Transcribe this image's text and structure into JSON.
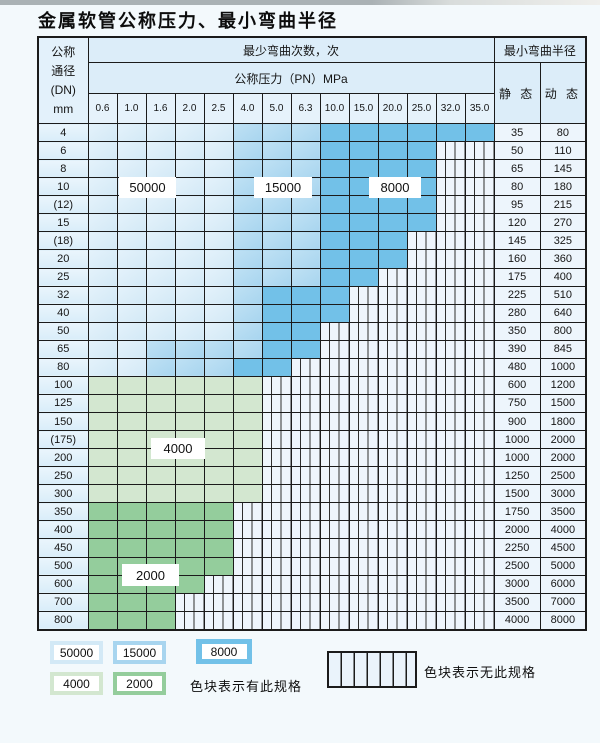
{
  "title": "金属软管公称压力、最小弯曲半径",
  "colors": {
    "blue_light": "#d3e9f6",
    "blue_light_hi": "#e4f2fb",
    "blue_medium": "#a8d5ef",
    "blue_medium_hi": "#bfe1f4",
    "blue_dark": "#72c1e8",
    "green_light": "#d3e7d0",
    "green_medium": "#94cd9c"
  },
  "table": {
    "header": {
      "dn_label_lines": [
        "公称",
        "通径",
        "(DN)",
        "mm"
      ],
      "bend_times_label": "最少弯曲次数，次",
      "pressure_label": "公称压力（PN）MPa",
      "radius_label": "最小弯曲半径",
      "static_label": "静 态",
      "dynamic_label": "动 态",
      "pressure_columns": [
        "0.6",
        "1.0",
        "1.6",
        "2.0",
        "2.5",
        "4.0",
        "5.0",
        "6.3",
        "10.0",
        "15.0",
        "20.0",
        "25.0",
        "32.0",
        "35.0"
      ]
    },
    "cell_codes": {
      "L": "50000次 区域(浅蓝)",
      "M": "15000次 区域(中蓝)",
      "D": "8000次 区域(深蓝)",
      "G": "4000次 区域(浅绿)",
      "E": "2000次 区域(中绿)",
      "X": "无此规格(竖纹)"
    },
    "rows": [
      {
        "dn": "4",
        "cells": "LLLLLMMMDDDDDD",
        "static": "35",
        "dynamic": "80"
      },
      {
        "dn": "6",
        "cells": "LLLLLMMMDDDDXX",
        "static": "50",
        "dynamic": "110"
      },
      {
        "dn": "8",
        "cells": "LLLLLMMMDDDDXX",
        "static": "65",
        "dynamic": "145"
      },
      {
        "dn": "10",
        "cells": "LLLLLMMMDDDDXX",
        "static": "80",
        "dynamic": "180"
      },
      {
        "dn": "(12)",
        "cells": "LLLLLMMMDDDDXX",
        "static": "95",
        "dynamic": "215"
      },
      {
        "dn": "15",
        "cells": "LLLLLMMMDDDDXX",
        "static": "120",
        "dynamic": "270"
      },
      {
        "dn": "(18)",
        "cells": "LLLLLMMMDDDXXX",
        "static": "145",
        "dynamic": "325"
      },
      {
        "dn": "20",
        "cells": "LLLLLMMMDDDXXX",
        "static": "160",
        "dynamic": "360"
      },
      {
        "dn": "25",
        "cells": "LLLLLMMMDDXXXX",
        "static": "175",
        "dynamic": "400"
      },
      {
        "dn": "32",
        "cells": "LLLLLMDDDXXXXX",
        "static": "225",
        "dynamic": "510"
      },
      {
        "dn": "40",
        "cells": "LLLLLMDDDXXXXX",
        "static": "280",
        "dynamic": "640"
      },
      {
        "dn": "50",
        "cells": "LLLLLMDDXXXXXX",
        "static": "350",
        "dynamic": "800"
      },
      {
        "dn": "65",
        "cells": "LLMMMMDDXXXXXX",
        "static": "390",
        "dynamic": "845"
      },
      {
        "dn": "80",
        "cells": "LLMMMDDXXXXXXX",
        "static": "480",
        "dynamic": "1000"
      },
      {
        "dn": "100",
        "cells": "GGGGGGXXXXXXXX",
        "static": "600",
        "dynamic": "1200"
      },
      {
        "dn": "125",
        "cells": "GGGGGGXXXXXXXX",
        "static": "750",
        "dynamic": "1500"
      },
      {
        "dn": "150",
        "cells": "GGGGGGXXXXXXXX",
        "static": "900",
        "dynamic": "1800"
      },
      {
        "dn": "(175)",
        "cells": "GGGGGGXXXXXXXX",
        "static": "1000",
        "dynamic": "2000"
      },
      {
        "dn": "200",
        "cells": "GGGGGGXXXXXXXX",
        "static": "1000",
        "dynamic": "2000"
      },
      {
        "dn": "250",
        "cells": "GGGGGGXXXXXXXX",
        "static": "1250",
        "dynamic": "2500"
      },
      {
        "dn": "300",
        "cells": "GGGGGGXXXXXXXX",
        "static": "1500",
        "dynamic": "3000"
      },
      {
        "dn": "350",
        "cells": "EEEEEXXXXXXXXX",
        "static": "1750",
        "dynamic": "3500"
      },
      {
        "dn": "400",
        "cells": "EEEEEXXXXXXXXX",
        "static": "2000",
        "dynamic": "4000"
      },
      {
        "dn": "450",
        "cells": "EEEEEXXXXXXXXX",
        "static": "2250",
        "dynamic": "4500"
      },
      {
        "dn": "500",
        "cells": "EEEEEXXXXXXXXX",
        "static": "2500",
        "dynamic": "5000"
      },
      {
        "dn": "600",
        "cells": "EEEEXXXXXXXXXX",
        "static": "3000",
        "dynamic": "6000"
      },
      {
        "dn": "700",
        "cells": "EEEXXXXXXXXXXX",
        "static": "3500",
        "dynamic": "7000"
      },
      {
        "dn": "800",
        "cells": "EEEXXXXXXXXXXX",
        "static": "4000",
        "dynamic": "8000"
      }
    ]
  },
  "region_labels": [
    "50000",
    "15000",
    "8000",
    "4000",
    "2000"
  ],
  "legend": {
    "swatches": [
      {
        "label": "50000",
        "type": "blue-light"
      },
      {
        "label": "15000",
        "type": "blue-medium"
      },
      {
        "label": "8000",
        "type": "blue-dark"
      },
      {
        "label": "4000",
        "type": "green-light"
      },
      {
        "label": "2000",
        "type": "green-medium"
      }
    ],
    "has_spec_note": "色块表示有此规格",
    "no_spec_note": "色块表示无此规格"
  }
}
